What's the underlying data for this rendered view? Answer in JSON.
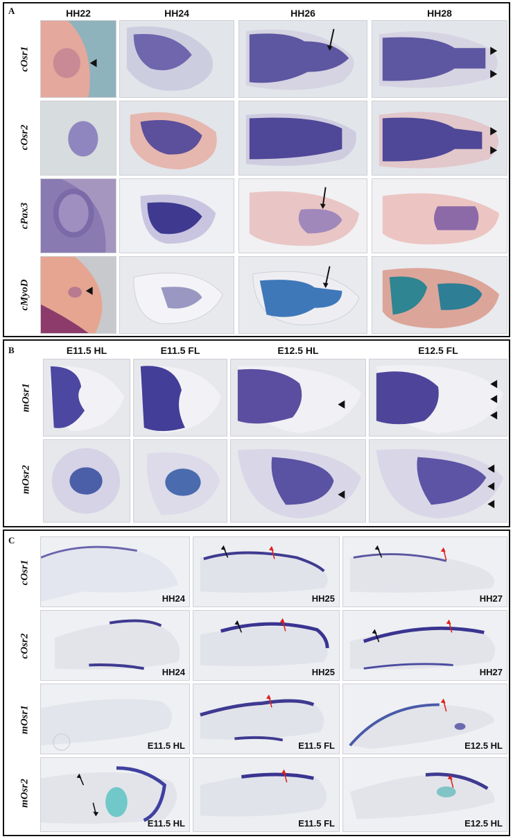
{
  "panel_a": {
    "label": "A",
    "columns": [
      "HH22",
      "HH24",
      "HH26",
      "HH28"
    ],
    "rows": [
      "cOsr1",
      "cOsr2",
      "cPax3",
      "cMyoD"
    ]
  },
  "panel_b": {
    "label": "B",
    "columns": [
      "E11.5 HL",
      "E11.5 FL",
      "E12.5 HL",
      "E12.5 FL"
    ],
    "rows": [
      "mOsr1",
      "mOsr2"
    ]
  },
  "panel_c": {
    "label": "C",
    "rows": [
      {
        "gene": "cOsr1",
        "stages": [
          "HH24",
          "HH25",
          "HH27"
        ]
      },
      {
        "gene": "cOsr2",
        "stages": [
          "HH24",
          "HH25",
          "HH27"
        ]
      },
      {
        "gene": "mOsr1",
        "stages": [
          "E11.5 HL",
          "E11.5 FL",
          "E12.5 HL"
        ]
      },
      {
        "gene": "mOsr2",
        "stages": [
          "E11.5 HL",
          "E11.5 FL",
          "E12.5 HL"
        ]
      }
    ]
  },
  "colors": {
    "stain": "#4b3d9a",
    "stain_dark": "#35287a",
    "background_light": "#dfe3ea",
    "pink_tissue": "#e8b7ae",
    "arrow_red": "#e0201c",
    "arrow_black": "#111111"
  }
}
